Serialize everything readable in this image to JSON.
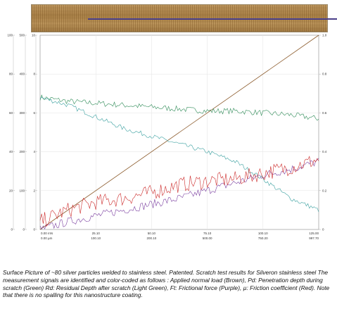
{
  "micrograph": {
    "label": ""
  },
  "caption": "Surface Picture of ~80 silver particles welded to stainless steel. Patented. Scratch test results for Silveron stainless steel The measurement signals are identified and color-coded as follows : Applied normal load (Brown), Pd: Penetration depth during scratch (Green) Rd: Residual Depth after scratch (Light Green), Ft: Frictional force (Purple), µ: Friction coefficient (Red). Note that there is no spalling for this nanostructure coating.",
  "chart_data": {
    "type": "line",
    "title": "",
    "xlabel": "",
    "ylabel": "",
    "xlim": [
      0,
      100
    ],
    "ylim": [
      0,
      100
    ],
    "grid": true,
    "left_axes": [
      {
        "ticks": [
          "100",
          "80",
          "60",
          "40",
          "20",
          "0"
        ]
      },
      {
        "ticks": [
          "500",
          "400",
          "300",
          "200",
          "100",
          "0"
        ]
      },
      {
        "ticks": [
          "10",
          "8",
          "6",
          "4",
          "2",
          "0"
        ]
      }
    ],
    "right_axis": {
      "ticks": [
        "1.0",
        "0.8",
        "0.6",
        "0.4",
        "0.2",
        "0"
      ]
    },
    "x_ticks_top": [
      "0.00 mN",
      "25.10",
      "50.10",
      "75.10",
      "100.10",
      "125.00"
    ],
    "x_ticks_bottom": [
      "0.00 µm",
      "100.10",
      "200.10",
      "500.00",
      "750.20",
      "997.70"
    ],
    "series": [
      {
        "color": "#8b5a2b",
        "x": [
          0,
          100
        ],
        "y": [
          0,
          100
        ]
      },
      {
        "color": "#2e8b57",
        "x": [
          0,
          10,
          20,
          30,
          40,
          50,
          60,
          70,
          80,
          90,
          100
        ],
        "y": [
          68,
          66,
          65,
          64,
          63,
          62,
          61,
          61,
          60,
          59,
          57
        ]
      },
      {
        "color": "#3aa0a0",
        "x": [
          0,
          10,
          20,
          30,
          40,
          50,
          60,
          70,
          80,
          90,
          100
        ],
        "y": [
          68,
          64,
          58,
          52,
          48,
          44,
          40,
          35,
          26,
          16,
          10
        ]
      },
      {
        "color": "#7b3fa0",
        "x": [
          0,
          10,
          20,
          30,
          40,
          50,
          60,
          70,
          80,
          90,
          100
        ],
        "y": [
          0,
          4,
          7,
          10,
          13,
          16,
          20,
          24,
          28,
          31,
          35
        ]
      },
      {
        "color": "#cc2a2a",
        "x": [
          0,
          10,
          20,
          30,
          40,
          50,
          60,
          70,
          80,
          90,
          100
        ],
        "y": [
          4,
          10,
          14,
          16,
          19,
          23,
          25,
          26,
          29,
          32,
          36
        ]
      }
    ]
  }
}
